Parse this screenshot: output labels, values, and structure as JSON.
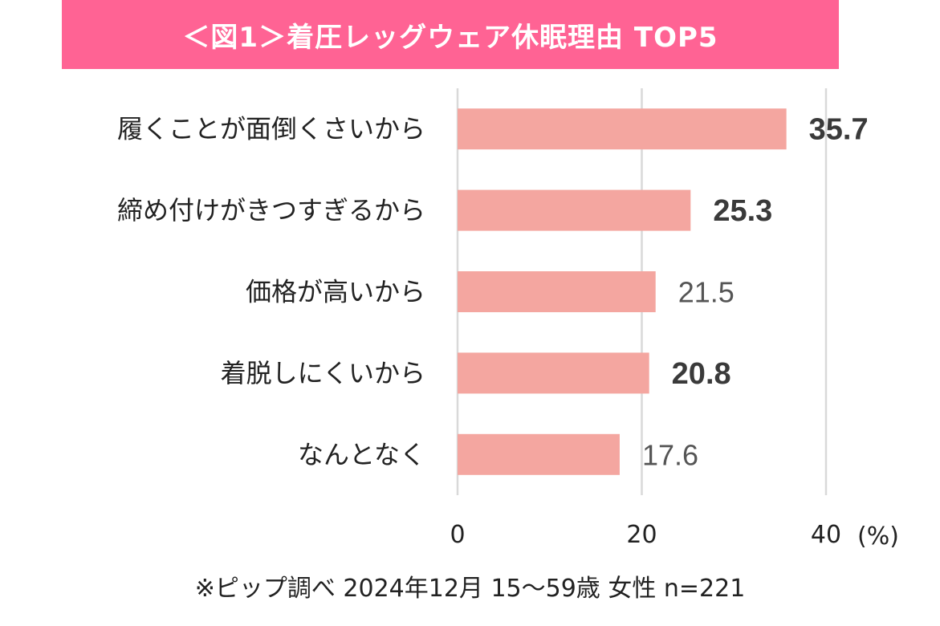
{
  "chart_data": {
    "type": "bar",
    "orientation": "horizontal",
    "title": "＜図1＞着圧レッグウェア休眠理由 TOP5",
    "categories": [
      "履くことが面倒くさいから",
      "締め付けがきつすぎるから",
      "価格が高いから",
      "着脱しにくいから",
      "なんとなく"
    ],
    "values": [
      35.7,
      25.3,
      21.5,
      20.8,
      17.6
    ],
    "value_labels": [
      "35.7",
      "25.3",
      "21.5",
      "20.8",
      "17.6"
    ],
    "bold_values": [
      true,
      true,
      false,
      true,
      false
    ],
    "xlim": [
      0,
      40
    ],
    "x_ticks": [
      "0",
      "20",
      "40"
    ],
    "x_unit": "(%)",
    "grid": true,
    "bar_color": "#f4a6a0",
    "title_bg_color": "#ff6394",
    "note": "※ピップ調べ 2024年12月 15〜59歳 女性 n=221"
  }
}
